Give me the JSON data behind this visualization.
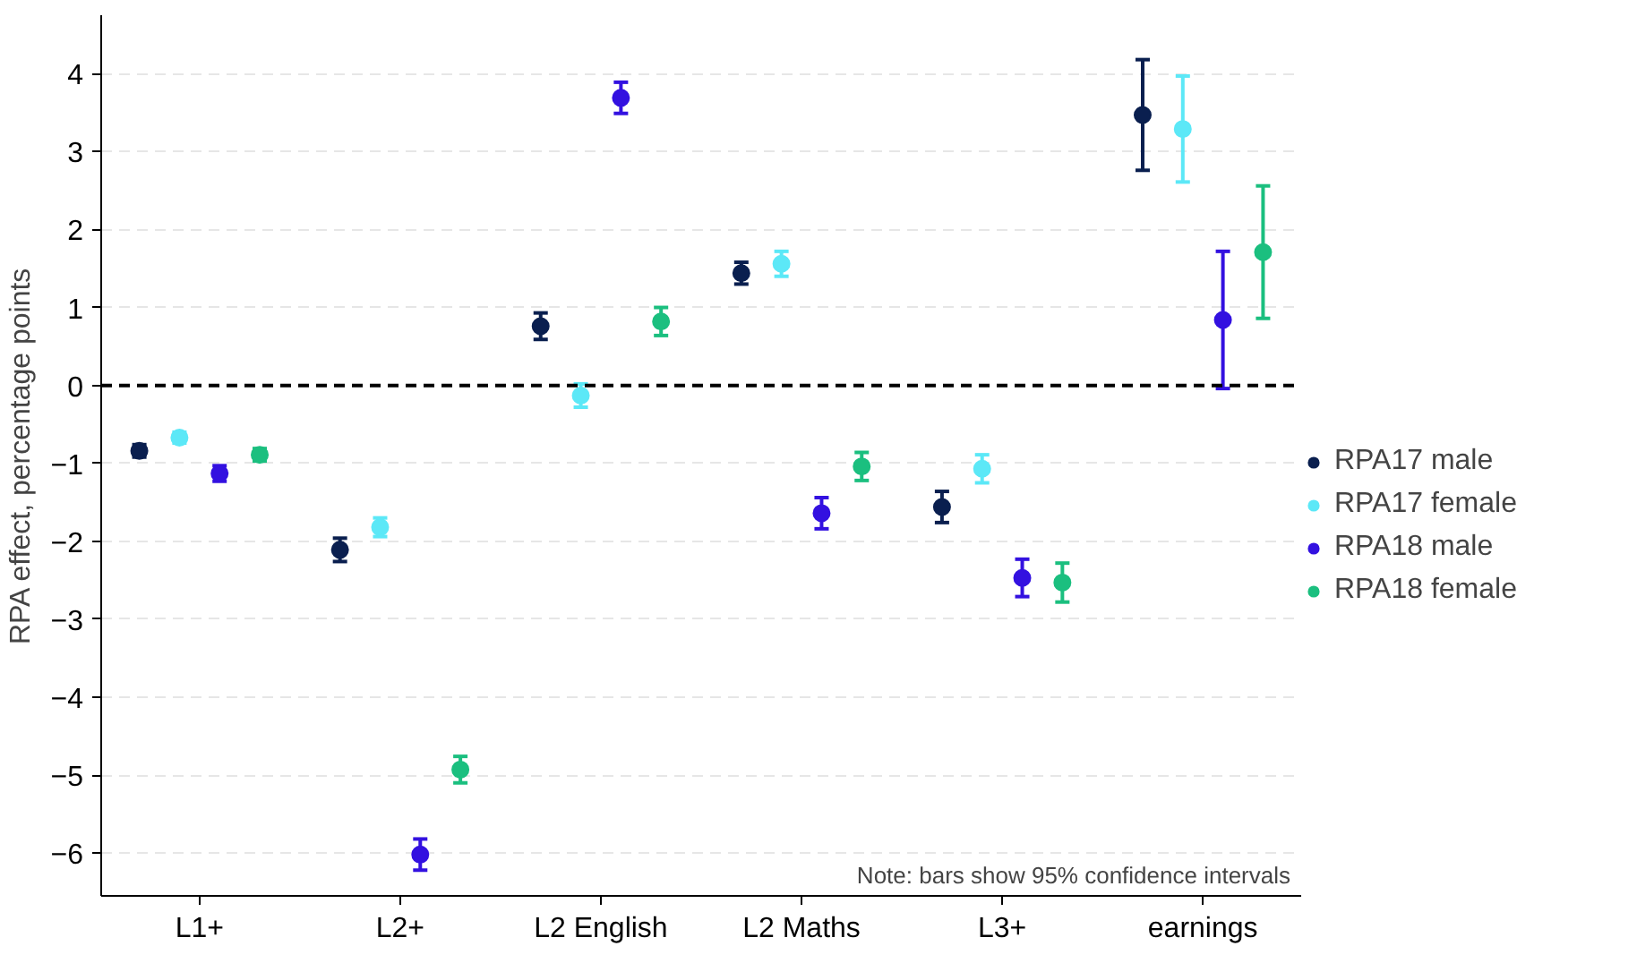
{
  "chart_data": {
    "type": "scatter",
    "ylabel": "RPA effect, percentage points",
    "categories": [
      "L1+",
      "L2+",
      "L2 English",
      "L2 Maths",
      "L3+",
      "earnings"
    ],
    "series": [
      {
        "name": "RPA17 male",
        "color": "#0a1f4f",
        "values": [
          -0.84,
          -2.11,
          0.76,
          1.44,
          -1.56,
          3.47
        ],
        "errors": [
          0.08,
          0.15,
          0.17,
          0.14,
          0.2,
          0.71
        ]
      },
      {
        "name": "RPA17 female",
        "color": "#5ce8f7",
        "values": [
          -0.67,
          -1.82,
          -0.13,
          1.56,
          -1.07,
          3.29
        ],
        "errors": [
          0.07,
          0.12,
          0.15,
          0.16,
          0.18,
          0.68
        ]
      },
      {
        "name": "RPA18 male",
        "color": "#3311e0",
        "values": [
          -1.13,
          -6.02,
          3.69,
          -1.64,
          -2.47,
          0.84
        ],
        "errors": [
          0.1,
          0.2,
          0.2,
          0.2,
          0.24,
          0.88
        ]
      },
      {
        "name": "RPA18 female",
        "color": "#1bbf7f",
        "values": [
          -0.89,
          -4.93,
          0.82,
          -1.04,
          -2.53,
          1.71
        ],
        "errors": [
          0.08,
          0.17,
          0.18,
          0.18,
          0.25,
          0.85
        ]
      }
    ],
    "ylim": [
      -6.55,
      4.75
    ],
    "yticks": [
      -6,
      -5,
      -4,
      -3,
      -2,
      -1,
      0,
      1,
      2,
      3,
      4
    ],
    "ref_lines": [
      {
        "axis": "y",
        "value": 0,
        "color": "#000000",
        "line_style": "dashed"
      }
    ],
    "annotations": [
      "Note: bars show 95% confidence intervals"
    ],
    "grid": "y",
    "legend": "right",
    "marker": "circle"
  }
}
